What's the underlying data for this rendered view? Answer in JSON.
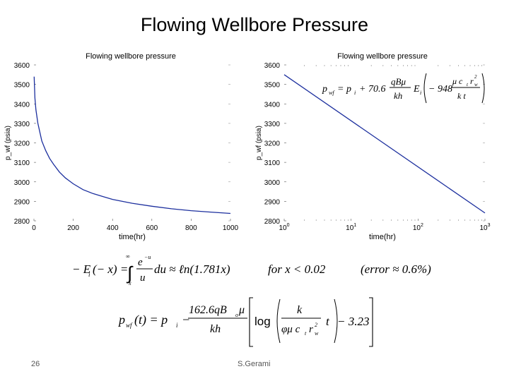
{
  "slide": {
    "title": "Flowing Wellbore Pressure",
    "page_number": "26",
    "author": "S.Gerami"
  },
  "chart_data": [
    {
      "type": "line",
      "title": "Flowing wellbore pressure",
      "xlabel": "time(hr)",
      "ylabel": "p_wf (psia)",
      "xlim": [
        0,
        1000
      ],
      "ylim": [
        2800,
        3600
      ],
      "xticks": [
        0,
        200,
        400,
        600,
        800,
        1000
      ],
      "xtick_labels": [
        "0",
        "200",
        "400",
        "600",
        "800",
        "1000"
      ],
      "yticks": [
        2800,
        2900,
        3000,
        3100,
        3200,
        3300,
        3400,
        3500,
        3600
      ],
      "ytick_labels": [
        "2800",
        "2900",
        "3000",
        "3100",
        "3200",
        "3300",
        "3400",
        "3500",
        "3600"
      ],
      "x": [
        1,
        5,
        10,
        20,
        40,
        60,
        80,
        100,
        130,
        160,
        200,
        250,
        300,
        350,
        400,
        450,
        500,
        600,
        700,
        800,
        900,
        1000
      ],
      "y": [
        3540,
        3430,
        3370,
        3300,
        3210,
        3160,
        3120,
        3090,
        3050,
        3020,
        2990,
        2960,
        2940,
        2925,
        2910,
        2900,
        2890,
        2875,
        2862,
        2852,
        2845,
        2838
      ],
      "color": "#1c2f9e"
    },
    {
      "type": "line",
      "title": "Flowing wellbore pressure",
      "xlabel": "time(hr)",
      "ylabel": "p_wf (psia)",
      "x_scale": "log",
      "xlim": [
        1,
        1000
      ],
      "ylim": [
        2800,
        3600
      ],
      "xticks": [
        1,
        10,
        100,
        1000
      ],
      "xtick_labels": [
        "10⁰",
        "10¹",
        "10²",
        "10³"
      ],
      "yticks": [
        2800,
        2900,
        3000,
        3100,
        3200,
        3300,
        3400,
        3500,
        3600
      ],
      "ytick_labels": [
        "2800",
        "2900",
        "3000",
        "3100",
        "3200",
        "3300",
        "3400",
        "3500",
        "3600"
      ],
      "x": [
        1,
        1000
      ],
      "y": [
        3550,
        2840
      ],
      "color": "#1c2f9e"
    }
  ],
  "equations": {
    "ei": {
      "lhs": "− E",
      "lhs_sub": "i",
      "lhs_arg": "(− x) =",
      "int_upper": "∞",
      "int_lower": "x",
      "integrand_num": "e",
      "integrand_num_sup": "−u",
      "integrand_den": "u",
      "du": "du ≈ ℓn(1.781x)",
      "condition": "for  x < 0.02",
      "error": "(error ≈ 0.6%)"
    },
    "inset": {
      "lhs": "p",
      "lhs_sub": "wf",
      "eq": "= p",
      "pi_sub": "i",
      "plus": "+ 70.6",
      "num": "qBμ",
      "den": "kh",
      "ei": "E",
      "ei_sub": "i",
      "minus": "− 948",
      "inner_num": "μ c",
      "inner_num_sub": "t",
      "inner_num_r": "r",
      "inner_num_r_sub": "w",
      "inner_num_sup": "2",
      "inner_den": "k t"
    },
    "approx": {
      "lhs": "p",
      "lhs_sub": "wf",
      "t": "(t) = p",
      "pi_sub": "i",
      "minus": "−",
      "num": "162.6qB",
      "num_sub": "o",
      "num_mu": "μ",
      "den": "kh",
      "log": "log",
      "k": "k",
      "phi": "φμ c",
      "phi_sub": "t",
      "r": "r",
      "r_sub": "w",
      "r_sup": "2",
      "t2": "t",
      "const": "− 3.23"
    }
  }
}
